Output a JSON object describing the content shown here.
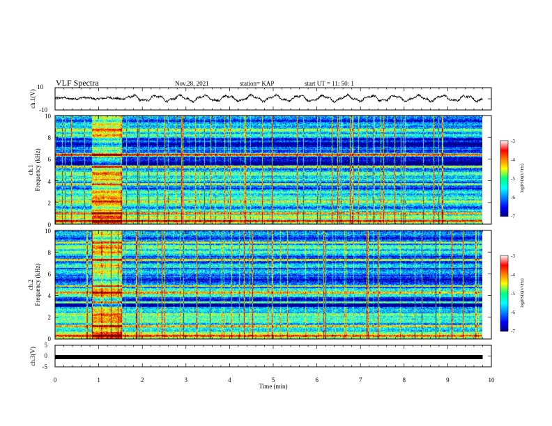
{
  "header": {
    "title": "VLF Spectra",
    "date": "Nov.28, 2021",
    "station": "station= KAP",
    "start": "start  UT =   11: 50: 1"
  },
  "chart_data": [
    {
      "type": "line",
      "id": "ch1-waveform",
      "ylabel": "ch.1(V)",
      "ylim": [
        -10,
        10
      ],
      "y_ticks": [
        "10",
        "-10"
      ],
      "xlim": [
        0,
        10
      ],
      "trace_range_min": [
        0,
        9.8
      ],
      "note_values": "noisy oscillation roughly between -4 and +5 V"
    },
    {
      "type": "heatmap",
      "id": "ch1-spectrogram",
      "ylabel": "ch.1\nFrequency (kHz)",
      "ylabel_lines": [
        "ch.1",
        "Frequency (kHz)"
      ],
      "ylim": [
        0,
        10
      ],
      "y_ticks": [
        "0",
        "2",
        "4",
        "6",
        "8",
        "10"
      ],
      "xlim": [
        0,
        10
      ],
      "data_range_min": [
        0,
        9.8
      ],
      "colorbar": {
        "label": "log(PSD)(V²/Hz)",
        "range": [
          -7,
          -3
        ],
        "ticks": [
          "-3",
          "-4",
          "-5",
          "-6",
          "-7"
        ]
      },
      "hot_bands_khz": [
        0.3,
        1.0,
        2.1,
        3.7,
        5.3,
        6.4
      ],
      "burst_interval_min": [
        0.85,
        1.5
      ]
    },
    {
      "type": "heatmap",
      "id": "ch2-spectrogram",
      "ylabel": "ch.2\nFrequency (kHz)",
      "ylabel_lines": [
        "ch.2",
        "Frequency (kHz)"
      ],
      "ylim": [
        0,
        10
      ],
      "y_ticks": [
        "0",
        "2",
        "4",
        "6",
        "8",
        "10"
      ],
      "xlim": [
        0,
        10
      ],
      "data_range_min": [
        0,
        9.8
      ],
      "colorbar": {
        "label": "log(PSD)(V²/Hz)",
        "range": [
          -7,
          -3
        ],
        "ticks": [
          "-3",
          "-4",
          "-5",
          "-6",
          "-7"
        ]
      },
      "hot_bands_khz": [
        0.3,
        1.2,
        3.4,
        4.3,
        4.9,
        7.3,
        8.9
      ],
      "burst_interval_min": [
        0.85,
        1.5
      ]
    },
    {
      "type": "line",
      "id": "ch3-waveform",
      "ylabel": "ch.3(V)",
      "ylim": [
        -5,
        5
      ],
      "y_ticks": [
        "5",
        "0",
        "-5"
      ],
      "xlim": [
        0,
        10
      ],
      "trace_level_v": -0.5,
      "trace_range_min": [
        0,
        9.8
      ]
    }
  ],
  "x_axis": {
    "label": "Time  (min)",
    "ticks": [
      "0",
      "1",
      "2",
      "3",
      "4",
      "5",
      "6",
      "7",
      "8",
      "9",
      "10"
    ],
    "range": [
      0,
      10
    ]
  }
}
